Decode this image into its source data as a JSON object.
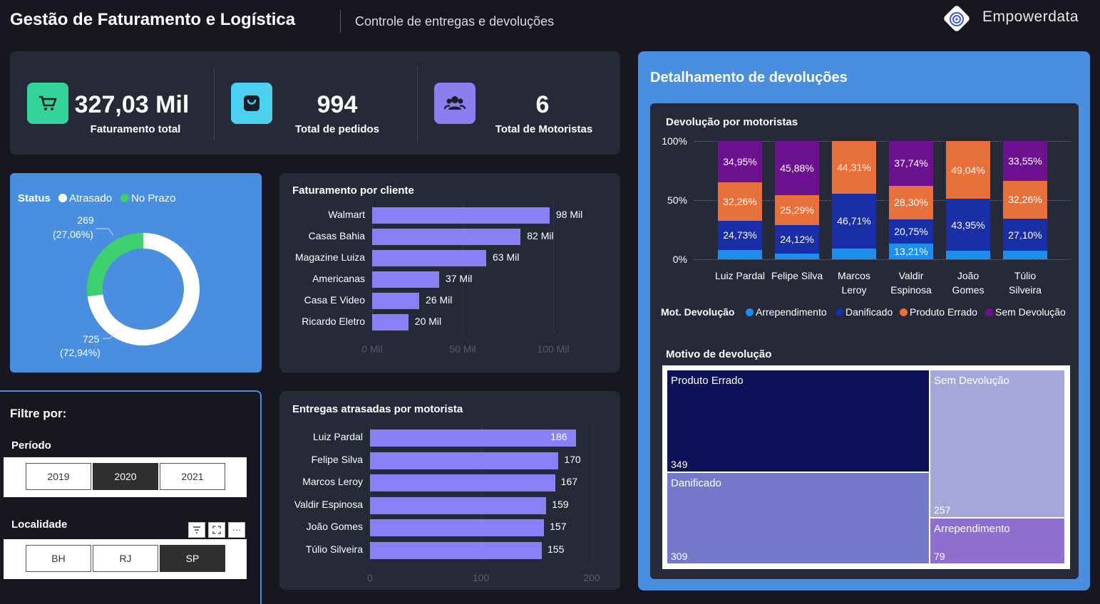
{
  "header": {
    "title": "Gestão de Faturamento e Logística",
    "subtitle": "Controle de entregas e devoluções",
    "brand": "Empowerdata"
  },
  "kpis": [
    {
      "value": "327,03 Mil",
      "label": "Faturamento total",
      "icon": "cart-icon",
      "color": "#33d49a"
    },
    {
      "value": "994",
      "label": "Total de pedidos",
      "icon": "bag-icon",
      "color": "#4dcff0"
    },
    {
      "value": "6",
      "label": "Total de Motoristas",
      "icon": "users-icon",
      "color": "#8a7ff0"
    }
  ],
  "status_chart": {
    "legend_title": "Status",
    "legend_items": [
      {
        "label": "Atrasado",
        "color": "#ffffff"
      },
      {
        "label": "No Prazo",
        "color": "#3ecf6e"
      }
    ],
    "top_value": "269",
    "top_pct": "(27,06%)",
    "bottom_value": "725",
    "bottom_pct": "(72,94%)",
    "atrasado_fraction": 0.7294,
    "no_prazo_fraction": 0.2706
  },
  "faturamento_chart": {
    "title": "Faturamento por cliente",
    "max": 100,
    "rows": [
      {
        "label": "Walmart",
        "value": 98,
        "text": "98 Mil"
      },
      {
        "label": "Casas Bahia",
        "value": 82,
        "text": "82 Mil"
      },
      {
        "label": "Magazine Luiza",
        "value": 63,
        "text": "63 Mil"
      },
      {
        "label": "Americanas",
        "value": 37,
        "text": "37 Mil"
      },
      {
        "label": "Casa E Video",
        "value": 26,
        "text": "26 Mil"
      },
      {
        "label": "Ricardo Eletro",
        "value": 20,
        "text": "20 Mil"
      }
    ],
    "ticks": [
      "0 Mil",
      "50 Mil",
      "100 Mil"
    ]
  },
  "entregas_chart": {
    "title": "Entregas atrasadas por motorista",
    "max": 200,
    "rows": [
      {
        "label": "Luiz Pardal",
        "value": 186
      },
      {
        "label": "Felipe Silva",
        "value": 170
      },
      {
        "label": "Marcos Leroy",
        "value": 167
      },
      {
        "label": "Valdir Espinosa",
        "value": 159
      },
      {
        "label": "João Gomes",
        "value": 157
      },
      {
        "label": "Túlio Silveira",
        "value": 155
      }
    ],
    "ticks": [
      "0",
      "100",
      "200"
    ]
  },
  "filters": {
    "title": "Filtre por:",
    "periodo_label": "Período",
    "periodo_options": [
      "2019",
      "2020",
      "2021"
    ],
    "periodo_selected": "2020",
    "localidade_label": "Localidade",
    "localidade_options": [
      "BH",
      "RJ",
      "SP"
    ],
    "localidade_selected": "SP"
  },
  "devolucoes": {
    "title": "Detalhamento de devoluções",
    "stack_title": "Devolução por motoristas",
    "y_ticks": [
      "100%",
      "50%",
      "0%"
    ],
    "legend_title": "Mot. Devolução",
    "series_colors": {
      "Arrependimento": "#1e8df0",
      "Danificado": "#1a2ea8",
      "Produto Errado": "#e8703b",
      "Sem Devolução": "#6c1290"
    },
    "legend": [
      "Arrependimento",
      "Danificado",
      "Produto Errado",
      "Sem Devolução"
    ],
    "drivers": [
      {
        "name": [
          "Luiz Pardal"
        ],
        "arrep": 8.06,
        "dan": 24.73,
        "prod": 32.26,
        "sem": 34.95,
        "labels": {
          "dan": "24,73%",
          "prod": "32,26%",
          "sem": "34,95%"
        }
      },
      {
        "name": [
          "Felipe Silva"
        ],
        "arrep": 4.71,
        "dan": 24.12,
        "prod": 25.29,
        "sem": 45.88,
        "labels": {
          "dan": "24,12%",
          "prod": "25,29%",
          "sem": "45,88%"
        }
      },
      {
        "name": [
          "Marcos",
          "Leroy"
        ],
        "arrep": 8.98,
        "dan": 46.71,
        "prod": 44.31,
        "sem": 0,
        "labels": {
          "dan": "46,71%",
          "prod": "44,31%"
        }
      },
      {
        "name": [
          "Valdir",
          "Espinosa"
        ],
        "arrep": 13.21,
        "dan": 20.75,
        "prod": 28.3,
        "sem": 37.74,
        "labels": {
          "arrep": "13,21%",
          "dan": "20,75%",
          "prod": "28,30%",
          "sem": "37,74%"
        }
      },
      {
        "name": [
          "João",
          "Gomes"
        ],
        "arrep": 7.01,
        "dan": 43.95,
        "prod": 49.04,
        "sem": 0,
        "labels": {
          "dan": "43,95%",
          "prod": "49,04%"
        }
      },
      {
        "name": [
          "Túlio",
          "Silveira"
        ],
        "arrep": 7.09,
        "dan": 27.1,
        "prod": 32.26,
        "sem": 33.55,
        "labels": {
          "dan": "27,10%",
          "prod": "32,26%",
          "sem": "33,55%"
        }
      }
    ],
    "treemap_title": "Motivo de devolução",
    "treemap": [
      {
        "name": "Produto Errado",
        "value": "349",
        "color": "#0d1157"
      },
      {
        "name": "Danificado",
        "value": "309",
        "color": "#7379c8"
      },
      {
        "name": "Sem Devolução",
        "value": "257",
        "color": "#a4a8d9"
      },
      {
        "name": "Arrependimento",
        "value": "79",
        "color": "#8e6fcf"
      }
    ]
  }
}
